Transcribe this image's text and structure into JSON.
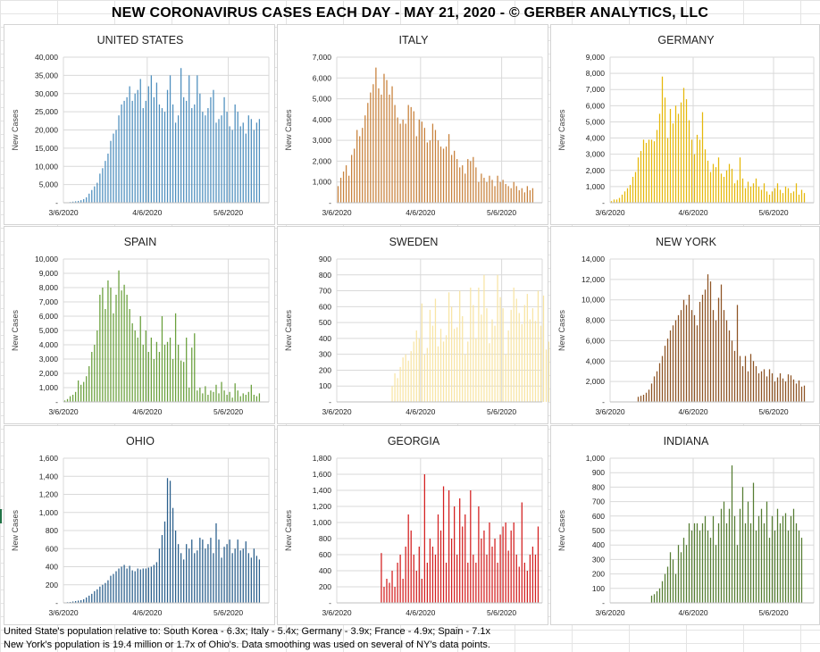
{
  "title": "NEW CORONAVIRUS CASES EACH DAY - MAY 21, 2020 - © GERBER ANALYTICS, LLC",
  "footnotes": [
    "United State's population relative to: South Korea - 6.3x; Italy - 5.4x; Germany - 3.9x; France - 4.9x; Spain - 7.1x",
    "New York's population is 19.4 million or 1.7x of Ohio's. Data smoothing was used on several of NY's data points."
  ],
  "chart_data": [
    {
      "type": "bar",
      "title": "UNITED STATES",
      "ylabel": "New Cases",
      "ylim": [
        0,
        40000
      ],
      "yticks": [
        0,
        5000,
        10000,
        15000,
        20000,
        25000,
        30000,
        35000,
        40000
      ],
      "ytick_labels": [
        "-",
        "5,000",
        "10,000",
        "15,000",
        "20,000",
        "25,000",
        "30,000",
        "35,000",
        "40,000"
      ],
      "xticks": [
        "3/6/2020",
        "4/6/2020",
        "5/6/2020"
      ],
      "start_index": 0,
      "color": "#4e8fbe",
      "values": [
        100,
        100,
        200,
        300,
        400,
        500,
        700,
        1000,
        1500,
        2500,
        3500,
        4500,
        5500,
        8000,
        9500,
        11500,
        13500,
        17000,
        19000,
        20000,
        24000,
        27000,
        28000,
        29000,
        32000,
        28000,
        30000,
        31000,
        34000,
        26000,
        28000,
        32000,
        35000,
        29000,
        33000,
        27000,
        26000,
        25000,
        31000,
        35000,
        27000,
        22000,
        24000,
        37000,
        29000,
        28000,
        35000,
        26000,
        27000,
        35000,
        30000,
        25000,
        24000,
        26000,
        29000,
        31000,
        22000,
        23000,
        24000,
        29000,
        25000,
        21000,
        20000,
        27000,
        25000,
        21000,
        22000,
        19000,
        24000,
        23000,
        20000,
        22000,
        23000
      ]
    },
    {
      "type": "bar",
      "title": "ITALY",
      "ylabel": "New Cases",
      "ylim": [
        0,
        7000
      ],
      "yticks": [
        0,
        1000,
        2000,
        3000,
        4000,
        5000,
        6000,
        7000
      ],
      "ytick_labels": [
        "-",
        "1,000",
        "2,000",
        "3,000",
        "4,000",
        "5,000",
        "6,000",
        "7,000"
      ],
      "xticks": [
        "3/6/2020",
        "4/6/2020",
        "5/6/2020"
      ],
      "start_index": 0,
      "color": "#c8823c",
      "values": [
        800,
        1200,
        1500,
        1800,
        1300,
        2300,
        2600,
        3500,
        3200,
        3600,
        4200,
        4800,
        5300,
        5700,
        6500,
        5500,
        5200,
        6200,
        5900,
        5200,
        5600,
        4700,
        4100,
        3800,
        4000,
        3800,
        4700,
        4600,
        4400,
        3200,
        4000,
        3900,
        3600,
        2900,
        3000,
        3800,
        3500,
        3000,
        2700,
        2600,
        2700,
        3300,
        2300,
        2500,
        2100,
        1700,
        1800,
        1400,
        2100,
        2000,
        2200,
        1700,
        1000,
        1400,
        1200,
        1000,
        1300,
        1100,
        800,
        1300,
        1000,
        1100,
        900,
        800,
        700,
        1000,
        800,
        600,
        700,
        500,
        800,
        600,
        700
      ]
    },
    {
      "type": "bar",
      "title": "GERMANY",
      "ylabel": "New Cases",
      "ylim": [
        0,
        9000
      ],
      "yticks": [
        0,
        1000,
        2000,
        3000,
        4000,
        5000,
        6000,
        7000,
        8000,
        9000
      ],
      "ytick_labels": [
        "-",
        "1,000",
        "2,000",
        "3,000",
        "4,000",
        "5,000",
        "6,000",
        "7,000",
        "8,000",
        "9,000"
      ],
      "xticks": [
        "3/6/2020",
        "4/6/2020",
        "5/6/2020"
      ],
      "start_index": 0,
      "color": "#e5b80b",
      "values": [
        100,
        200,
        200,
        300,
        500,
        700,
        900,
        1100,
        1600,
        1900,
        2800,
        3200,
        3900,
        3700,
        3900,
        3900,
        3800,
        4500,
        5500,
        7800,
        6500,
        4000,
        5800,
        4900,
        6000,
        5500,
        6200,
        7100,
        6400,
        5100,
        3900,
        3000,
        4200,
        3900,
        5600,
        3300,
        2600,
        1900,
        2400,
        2200,
        2800,
        1800,
        1600,
        2000,
        2400,
        2100,
        1200,
        1400,
        2800,
        1500,
        900,
        1300,
        1000,
        1200,
        1500,
        1000,
        800,
        1200,
        700,
        500,
        700,
        900,
        1200,
        800,
        600,
        1000,
        900,
        600,
        700,
        1200,
        500,
        800,
        600
      ]
    },
    {
      "type": "bar",
      "title": "SPAIN",
      "ylabel": "New Cases",
      "ylim": [
        0,
        10000
      ],
      "yticks": [
        0,
        1000,
        2000,
        3000,
        4000,
        5000,
        6000,
        7000,
        8000,
        9000,
        10000
      ],
      "ytick_labels": [
        "-",
        "1,000",
        "2,000",
        "3,000",
        "4,000",
        "5,000",
        "6,000",
        "7,000",
        "8,000",
        "9,000",
        "10,000"
      ],
      "xticks": [
        "3/6/2020",
        "4/6/2020",
        "5/6/2020"
      ],
      "start_index": 0,
      "color": "#6aa03c",
      "values": [
        100,
        200,
        400,
        500,
        700,
        1500,
        1200,
        1400,
        1800,
        2500,
        3500,
        4000,
        5000,
        7500,
        8000,
        6500,
        8500,
        8000,
        6200,
        7500,
        9200,
        7800,
        8200,
        7500,
        6500,
        5500,
        5000,
        4500,
        6000,
        4000,
        5000,
        3500,
        4500,
        3000,
        4200,
        3500,
        6000,
        4000,
        4200,
        4500,
        3000,
        6200,
        4000,
        2900,
        2800,
        4500,
        1000,
        3800,
        4800,
        800,
        1000,
        600,
        1100,
        500,
        800,
        700,
        1200,
        600,
        1400,
        800,
        500,
        700,
        300,
        1300,
        800,
        400,
        600,
        500,
        700,
        1200,
        500,
        400,
        600
      ]
    },
    {
      "type": "bar",
      "title": "SWEDEN",
      "ylabel": "New Cases",
      "ylim": [
        0,
        900
      ],
      "yticks": [
        0,
        100,
        200,
        300,
        400,
        500,
        600,
        700,
        800,
        900
      ],
      "ytick_labels": [
        "-",
        "100",
        "200",
        "300",
        "400",
        "500",
        "600",
        "700",
        "800",
        "900"
      ],
      "xticks": [
        "3/6/2020",
        "4/6/2020",
        "5/6/2020"
      ],
      "start_index": 20,
      "color": "#f8e5a5",
      "values": [
        100,
        180,
        150,
        220,
        280,
        300,
        260,
        320,
        380,
        450,
        400,
        620,
        300,
        340,
        580,
        480,
        650,
        350,
        460,
        380,
        420,
        690,
        600,
        460,
        470,
        700,
        540,
        300,
        380,
        720,
        610,
        400,
        720,
        550,
        800,
        590,
        370,
        520,
        480,
        800,
        660,
        590,
        300,
        450,
        580,
        720,
        650,
        560,
        490,
        610,
        680,
        520,
        590,
        510,
        700,
        480,
        670,
        330,
        380,
        560,
        720
      ]
    },
    {
      "type": "bar",
      "title": "NEW YORK",
      "ylabel": "New Cases",
      "ylim": [
        0,
        14000
      ],
      "yticks": [
        0,
        2000,
        4000,
        6000,
        8000,
        10000,
        12000,
        14000
      ],
      "ytick_labels": [
        "-",
        "2,000",
        "4,000",
        "6,000",
        "8,000",
        "10,000",
        "12,000",
        "14,000"
      ],
      "xticks": [
        "3/6/2020",
        "4/6/2020",
        "5/6/2020"
      ],
      "start_index": 0,
      "color": "#8e5424",
      "values": [
        0,
        0,
        0,
        0,
        0,
        0,
        0,
        0,
        0,
        0,
        500,
        600,
        700,
        900,
        1200,
        1800,
        2500,
        3000,
        3800,
        4500,
        5500,
        6200,
        7000,
        7500,
        8000,
        8500,
        9000,
        10000,
        9500,
        10500,
        9000,
        8500,
        7500,
        9800,
        10500,
        11000,
        12500,
        11800,
        9000,
        8000,
        10200,
        11500,
        9000,
        8000,
        7000,
        6000,
        5000,
        9500,
        4500,
        3500,
        4500,
        3000,
        4700,
        4000,
        3500,
        2800,
        3000,
        3200,
        2500,
        3200,
        2800,
        2000,
        2400,
        2800,
        2300,
        2000,
        2700,
        2600,
        2200,
        1800,
        2100,
        1500,
        1600
      ]
    },
    {
      "type": "bar",
      "title": "OHIO",
      "ylabel": "New Cases",
      "ylim": [
        0,
        1600
      ],
      "yticks": [
        0,
        200,
        400,
        600,
        800,
        1000,
        1200,
        1400,
        1600
      ],
      "ytick_labels": [
        "-",
        "200",
        "400",
        "600",
        "800",
        "1,000",
        "1,200",
        "1,400",
        "1,600"
      ],
      "xticks": [
        "3/6/2020",
        "4/6/2020",
        "5/6/2020"
      ],
      "start_index": 0,
      "color": "#2a5f8c",
      "values": [
        5,
        8,
        10,
        15,
        20,
        25,
        30,
        40,
        60,
        80,
        100,
        130,
        150,
        180,
        200,
        220,
        250,
        300,
        320,
        350,
        380,
        400,
        420,
        380,
        410,
        360,
        350,
        380,
        370,
        380,
        380,
        390,
        400,
        420,
        450,
        600,
        750,
        900,
        1380,
        1350,
        1050,
        800,
        650,
        550,
        480,
        650,
        600,
        700,
        550,
        580,
        720,
        700,
        600,
        650,
        720,
        550,
        880,
        700,
        500,
        620,
        650,
        700,
        550,
        600,
        700,
        580,
        600,
        680,
        550,
        500,
        600,
        520,
        480
      ]
    },
    {
      "type": "bar",
      "title": "GEORGIA",
      "ylabel": "New Cases",
      "ylim": [
        0,
        1800
      ],
      "yticks": [
        0,
        200,
        400,
        600,
        800,
        1000,
        1200,
        1400,
        1600,
        1800
      ],
      "ytick_labels": [
        "-",
        "200",
        "400",
        "600",
        "800",
        "1,000",
        "1,200",
        "1,400",
        "1,600",
        "1,800"
      ],
      "xticks": [
        "3/6/2020",
        "4/6/2020",
        "5/6/2020"
      ],
      "start_index": 16,
      "color": "#d42020",
      "values": [
        620,
        200,
        300,
        250,
        400,
        200,
        500,
        600,
        300,
        700,
        1100,
        900,
        600,
        400,
        700,
        300,
        1600,
        500,
        800,
        700,
        600,
        1100,
        900,
        1450,
        500,
        1400,
        800,
        1200,
        600,
        1300,
        950,
        1100,
        500,
        1400,
        600,
        500,
        1200,
        800,
        900,
        600,
        1000,
        700,
        800,
        500,
        850,
        950,
        1000,
        650,
        900,
        1000,
        600,
        450,
        1250,
        500,
        400,
        600,
        700,
        600,
        950
      ]
    },
    {
      "type": "bar",
      "title": "INDIANA",
      "ylabel": "New Cases",
      "ylim": [
        0,
        1000
      ],
      "yticks": [
        0,
        100,
        200,
        300,
        400,
        500,
        600,
        700,
        800,
        900,
        1000
      ],
      "ytick_labels": [
        "-",
        "100",
        "200",
        "300",
        "400",
        "500",
        "600",
        "700",
        "800",
        "900",
        "1,000"
      ],
      "xticks": [
        "3/6/2020",
        "4/6/2020",
        "5/6/2020"
      ],
      "start_index": 15,
      "color": "#567d32",
      "values": [
        50,
        60,
        80,
        100,
        150,
        200,
        250,
        350,
        300,
        200,
        400,
        350,
        450,
        400,
        550,
        500,
        550,
        550,
        500,
        550,
        600,
        500,
        450,
        600,
        400,
        550,
        650,
        700,
        550,
        650,
        950,
        600,
        400,
        650,
        800,
        550,
        700,
        550,
        830,
        500,
        600,
        650,
        550,
        700,
        450,
        600,
        500,
        650,
        550,
        600,
        620,
        500,
        600,
        650,
        550,
        500,
        450
      ]
    }
  ]
}
